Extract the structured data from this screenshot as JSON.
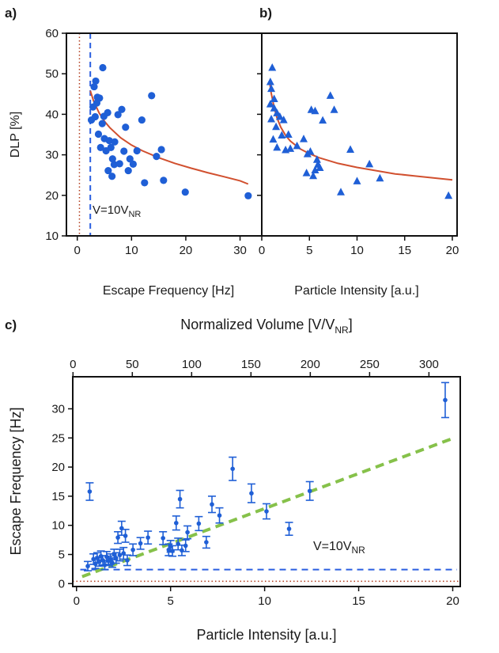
{
  "figure": {
    "panel_a_label": "a)",
    "panel_b_label": "b)",
    "panel_c_label": "c)"
  },
  "colors": {
    "points": "#1f5fd6",
    "fit_curve": "#d1502f",
    "linear_fit": "#86c14a",
    "threshold_dashed": "#2a5fe0",
    "zero_dotted": "#b03a1a"
  },
  "chart_data": [
    {
      "id": "a",
      "type": "scatter",
      "marker": "circle",
      "title": "",
      "xlabel": "Escape Frequency [Hz]",
      "ylabel": "DLP [%]",
      "xlim": [
        -2,
        34
      ],
      "ylim": [
        10,
        60
      ],
      "xticks": [
        "0",
        "10",
        "20",
        "30"
      ],
      "yticks": [
        "10",
        "20",
        "30",
        "40",
        "50",
        "60"
      ],
      "annotation": {
        "base": "V=10V",
        "sub": "NR"
      },
      "vline_dashed_x": 2.4,
      "vline_dotted_x": 0.4,
      "points": [
        [
          3.1,
          46.8
        ],
        [
          3.4,
          48.2
        ],
        [
          4.7,
          51.5
        ],
        [
          2.6,
          38.6
        ],
        [
          3.3,
          39.4
        ],
        [
          3.7,
          44.2
        ],
        [
          4.1,
          44.0
        ],
        [
          4.9,
          39.5
        ],
        [
          5.6,
          40.4
        ],
        [
          3.9,
          35.1
        ],
        [
          4.3,
          31.8
        ],
        [
          5.0,
          34.0
        ],
        [
          5.3,
          31.0
        ],
        [
          5.9,
          33.5
        ],
        [
          6.2,
          31.8
        ],
        [
          6.5,
          29.0
        ],
        [
          5.7,
          26.1
        ],
        [
          6.4,
          24.7
        ],
        [
          6.8,
          27.6
        ],
        [
          7.5,
          39.9
        ],
        [
          8.2,
          41.2
        ],
        [
          7.8,
          27.8
        ],
        [
          8.6,
          30.9
        ],
        [
          8.9,
          36.8
        ],
        [
          9.4,
          26.1
        ],
        [
          9.7,
          29.0
        ],
        [
          10.3,
          27.7
        ],
        [
          11.0,
          31.0
        ],
        [
          11.9,
          38.6
        ],
        [
          12.4,
          23.1
        ],
        [
          13.7,
          44.6
        ],
        [
          14.6,
          29.6
        ],
        [
          15.5,
          31.3
        ],
        [
          15.9,
          23.7
        ],
        [
          19.9,
          20.8
        ],
        [
          31.5,
          19.9
        ],
        [
          2.9,
          41.8
        ],
        [
          4.6,
          37.7
        ],
        [
          6.9,
          33.2
        ],
        [
          3.6,
          42.8
        ]
      ],
      "fit_curve": [
        [
          2.4,
          45.8
        ],
        [
          3,
          43.3
        ],
        [
          4,
          40.4
        ],
        [
          5,
          38.3
        ],
        [
          6,
          36.7
        ],
        [
          8,
          34.2
        ],
        [
          10,
          32.4
        ],
        [
          12,
          31.0
        ],
        [
          15,
          29.3
        ],
        [
          18,
          27.9
        ],
        [
          21,
          26.7
        ],
        [
          24,
          25.6
        ],
        [
          27,
          24.6
        ],
        [
          30,
          23.6
        ],
        [
          31.5,
          22.8
        ]
      ]
    },
    {
      "id": "b",
      "type": "scatter",
      "marker": "triangle",
      "title": "",
      "xlabel": "Particle Intensity [a.u.]",
      "ylabel": "",
      "xlim": [
        0,
        20.5
      ],
      "ylim": [
        10,
        60
      ],
      "xticks": [
        "0",
        "5",
        "10",
        "15",
        "20"
      ],
      "yticks": [
        "10",
        "20",
        "30",
        "40",
        "50",
        "60"
      ],
      "points": [
        [
          1.1,
          51.5
        ],
        [
          0.9,
          48.0
        ],
        [
          1.0,
          46.3
        ],
        [
          1.3,
          43.8
        ],
        [
          0.9,
          42.5
        ],
        [
          1.3,
          41.5
        ],
        [
          1.6,
          40.3
        ],
        [
          1.0,
          38.8
        ],
        [
          1.9,
          39.4
        ],
        [
          2.3,
          38.6
        ],
        [
          1.5,
          36.9
        ],
        [
          1.2,
          33.8
        ],
        [
          2.1,
          34.8
        ],
        [
          2.8,
          35.0
        ],
        [
          1.6,
          31.8
        ],
        [
          2.5,
          31.2
        ],
        [
          3.0,
          31.5
        ],
        [
          3.7,
          32.2
        ],
        [
          4.4,
          33.9
        ],
        [
          4.8,
          30.2
        ],
        [
          5.1,
          30.8
        ],
        [
          5.2,
          41.1
        ],
        [
          5.6,
          40.8
        ],
        [
          4.7,
          25.5
        ],
        [
          5.4,
          24.8
        ],
        [
          5.6,
          26.2
        ],
        [
          5.9,
          27.6
        ],
        [
          6.1,
          26.8
        ],
        [
          5.8,
          28.8
        ],
        [
          6.4,
          38.5
        ],
        [
          7.2,
          44.6
        ],
        [
          7.6,
          41.1
        ],
        [
          8.3,
          20.8
        ],
        [
          9.3,
          31.3
        ],
        [
          10.0,
          23.5
        ],
        [
          11.3,
          27.7
        ],
        [
          12.4,
          24.2
        ],
        [
          19.6,
          19.9
        ]
      ],
      "fit_curve": [
        [
          0.8,
          48.3
        ],
        [
          1,
          45.2
        ],
        [
          1.3,
          41.6
        ],
        [
          1.6,
          39.1
        ],
        [
          2,
          36.8
        ],
        [
          2.5,
          34.8
        ],
        [
          3,
          33.4
        ],
        [
          4,
          31.5
        ],
        [
          5,
          30.3
        ],
        [
          6,
          29.3
        ],
        [
          8,
          27.9
        ],
        [
          10,
          26.9
        ],
        [
          12,
          26.1
        ],
        [
          14,
          25.3
        ],
        [
          16,
          24.8
        ],
        [
          18,
          24.3
        ],
        [
          20,
          23.8
        ]
      ]
    },
    {
      "id": "c",
      "type": "scatter",
      "marker": "circle-errorbar",
      "title": "",
      "xlabel": "Particle Intensity [a.u.]",
      "ylabel": "Escape Frequency [Hz]",
      "top_xlabel": {
        "base": "Normalized Volume [V/V",
        "sub": "NR",
        "end": "]"
      },
      "xlim": [
        -0.2,
        20.4
      ],
      "ylim": [
        -0.5,
        35.5
      ],
      "xticks": [
        "0",
        "5",
        "10",
        "15",
        "20"
      ],
      "yticks": [
        "0",
        "5",
        "10",
        "15",
        "20",
        "25",
        "30"
      ],
      "top_xlim": [
        -0.2,
        326.4
      ],
      "top_xticks": [
        "0",
        "50",
        "100",
        "150",
        "200",
        "250",
        "300"
      ],
      "annotation": {
        "base": "V=10V",
        "sub": "NR"
      },
      "hline_dashed_y": 2.4,
      "hline_dotted_y": 0.4,
      "linear_fit": [
        [
          0.3,
          1.2
        ],
        [
          19.9,
          24.8
        ]
      ],
      "points": [
        [
          0.6,
          3.0,
          0.8
        ],
        [
          0.7,
          15.8,
          1.5
        ],
        [
          0.9,
          4.2,
          0.9
        ],
        [
          1.0,
          3.4,
          0.8
        ],
        [
          1.1,
          4.4,
          0.9
        ],
        [
          1.2,
          3.8,
          0.8
        ],
        [
          1.3,
          4.7,
          0.9
        ],
        [
          1.4,
          4.0,
          0.8
        ],
        [
          1.5,
          3.2,
          0.8
        ],
        [
          1.6,
          4.6,
          0.9
        ],
        [
          1.7,
          3.9,
          0.8
        ],
        [
          1.8,
          4.2,
          0.9
        ],
        [
          1.9,
          3.6,
          0.8
        ],
        [
          2.0,
          5.0,
          0.9
        ],
        [
          2.1,
          4.4,
          0.9
        ],
        [
          2.2,
          7.9,
          1.0
        ],
        [
          2.3,
          4.9,
          1.0
        ],
        [
          2.4,
          9.5,
          1.2
        ],
        [
          2.5,
          5.2,
          1.0
        ],
        [
          2.6,
          8.2,
          1.1
        ],
        [
          2.7,
          4.0,
          0.9
        ],
        [
          3.0,
          5.8,
          1.0
        ],
        [
          3.4,
          6.9,
          1.0
        ],
        [
          3.8,
          7.9,
          1.1
        ],
        [
          4.6,
          7.8,
          1.1
        ],
        [
          4.9,
          5.8,
          1.0
        ],
        [
          5.0,
          6.4,
          1.0
        ],
        [
          5.1,
          5.6,
          0.9
        ],
        [
          5.3,
          10.4,
          1.2
        ],
        [
          5.4,
          6.8,
          1.0
        ],
        [
          5.5,
          14.5,
          1.5
        ],
        [
          5.6,
          5.7,
          0.9
        ],
        [
          5.8,
          6.5,
          1.0
        ],
        [
          5.9,
          8.8,
          1.1
        ],
        [
          6.5,
          10.3,
          1.2
        ],
        [
          6.9,
          7.1,
          1.0
        ],
        [
          7.2,
          13.6,
          1.4
        ],
        [
          7.6,
          11.7,
          1.3
        ],
        [
          8.3,
          19.7,
          2.0
        ],
        [
          9.3,
          15.5,
          1.6
        ],
        [
          10.1,
          12.4,
          1.3
        ],
        [
          11.3,
          9.4,
          1.1
        ],
        [
          12.4,
          15.9,
          1.6
        ],
        [
          19.6,
          31.5,
          3.0
        ]
      ]
    }
  ]
}
